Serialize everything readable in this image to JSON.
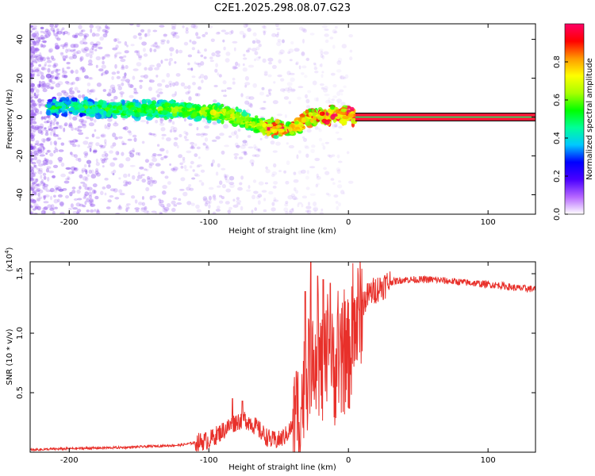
{
  "title": "C2E1.2025.298.08.07.G23",
  "chart_data": [
    {
      "type": "heatmap",
      "title": "C2E1.2025.298.08.07.G23",
      "xlabel": "Height of straight line (km)",
      "ylabel": "Frequency (Hz)",
      "xlim": [
        -228,
        134
      ],
      "ylim": [
        -50,
        48
      ],
      "xticks": [
        -200,
        -100,
        0,
        100
      ],
      "yticks": [
        -40,
        -20,
        0,
        20,
        40
      ],
      "colorbar": {
        "label": "Normalized spectral amplitude",
        "ticks": [
          0.0,
          0.2,
          0.4,
          0.6,
          0.8
        ],
        "range": [
          0,
          1
        ],
        "stops": [
          "#ffffff",
          "#b566ff",
          "#4a00ff",
          "#0000ff",
          "#00c8ff",
          "#00ff99",
          "#00ff00",
          "#a8ff00",
          "#ffff00",
          "#ff9900",
          "#ff0000",
          "#ff0066"
        ]
      },
      "ridge": {
        "x": [
          -210,
          -190,
          -170,
          -150,
          -130,
          -110,
          -90,
          -80,
          -70,
          -60,
          -50,
          -40,
          -35,
          -30,
          -25,
          -20,
          -15,
          -10,
          -5,
          0,
          5,
          134
        ],
        "y": [
          5,
          5,
          4,
          4,
          4,
          3,
          2,
          0,
          -3,
          -5,
          -6,
          -6,
          -4,
          -1,
          0,
          1,
          0,
          2,
          1,
          1,
          0,
          0
        ]
      },
      "steady_band": {
        "x_start": 5,
        "x_end": 134,
        "y": 0,
        "half_width": 2
      }
    },
    {
      "type": "line",
      "xlabel": "Height of straight line (km)",
      "ylabel": "SNR (10 * v/v)",
      "y_multiplier": "(x10",
      "y_multiplier_exp": "4",
      "multiplier_close": ")",
      "xlim": [
        -228,
        134
      ],
      "ylim": [
        0,
        1.6
      ],
      "xticks": [
        -200,
        -100,
        0,
        100
      ],
      "yticks": [
        0.5,
        1.0,
        1.5
      ],
      "series": [
        {
          "name": "SNR",
          "color": "#e8302a",
          "envelope_x": [
            -228,
            -200,
            -160,
            -120,
            -110,
            -100,
            -95,
            -90,
            -85,
            -80,
            -75,
            -70,
            -65,
            -60,
            -55,
            -50,
            -45,
            -40,
            -35,
            -32,
            -30,
            -28,
            -25,
            -22,
            -20,
            -18,
            -15,
            -12,
            -10,
            -8,
            -5,
            -3,
            0,
            3,
            5,
            8,
            10,
            15,
            20,
            25,
            30,
            40,
            50,
            60,
            70,
            80,
            90,
            100,
            110,
            120,
            134
          ],
          "envelope_y": [
            0.02,
            0.03,
            0.04,
            0.06,
            0.08,
            0.1,
            0.14,
            0.18,
            0.22,
            0.26,
            0.28,
            0.25,
            0.2,
            0.14,
            0.1,
            0.1,
            0.14,
            0.22,
            0.35,
            0.5,
            0.62,
            0.78,
            0.9,
            0.82,
            0.7,
            0.68,
            0.75,
            0.72,
            0.7,
            0.75,
            0.72,
            0.8,
            0.8,
            0.95,
            1.05,
            1.18,
            1.25,
            1.33,
            1.37,
            1.4,
            1.43,
            1.45,
            1.45,
            1.45,
            1.44,
            1.43,
            1.42,
            1.41,
            1.4,
            1.38,
            1.37
          ],
          "peak_values": [
            {
              "x": -27,
              "y": 1.6
            },
            {
              "x": -22,
              "y": 1.48
            },
            {
              "x": -18,
              "y": 1.45
            },
            {
              "x": -13,
              "y": 1.42
            },
            {
              "x": -31,
              "y": 1.35
            },
            {
              "x": -83,
              "y": 0.45
            },
            {
              "x": -76,
              "y": 0.43
            }
          ]
        }
      ]
    }
  ]
}
